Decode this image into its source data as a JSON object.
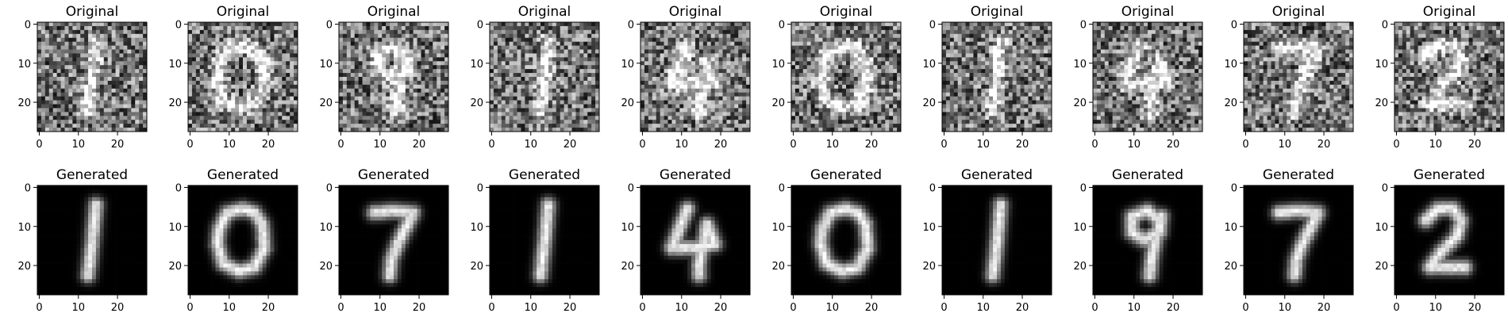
{
  "figure": {
    "rows": [
      {
        "title": "Original",
        "style": "noisy"
      },
      {
        "title": "Generated",
        "style": "clean"
      }
    ],
    "columns": 10,
    "digits": [
      "1",
      "0",
      "9",
      "1",
      "4",
      "0",
      "1",
      "4",
      "7",
      "2"
    ],
    "generated_digits": [
      "1",
      "0",
      "7",
      "1",
      "4",
      "0",
      "1",
      "9",
      "7",
      "2"
    ],
    "image_size": 28,
    "ticks": [
      0,
      10,
      20
    ],
    "tick_labels": [
      "0",
      "10",
      "20"
    ],
    "colors": {
      "frame": "#000000",
      "clean_background": "#000000",
      "digit": "#ffffff",
      "noise_mid": "#808080"
    }
  }
}
